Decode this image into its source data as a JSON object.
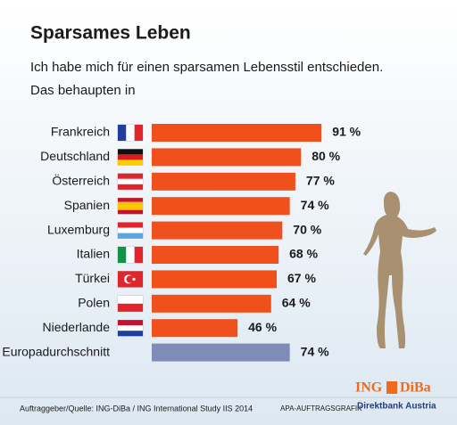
{
  "chart_data": {
    "type": "bar",
    "title": "Sparsames Leben",
    "subtitle": [
      "Ich habe mich für einen sparsamen Lebensstil entschieden.",
      "Das behaupten in"
    ],
    "categories": [
      "Frankreich",
      "Deutschland",
      "Österreich",
      "Spanien",
      "Luxemburg",
      "Italien",
      "Türkei",
      "Polen",
      "Niederlande",
      "Europadurchschnitt"
    ],
    "values": [
      91,
      80,
      77,
      74,
      70,
      68,
      67,
      64,
      46,
      74
    ],
    "value_labels": [
      "91 %",
      "80 %",
      "77 %",
      "74 %",
      "70 %",
      "68 %",
      "67 %",
      "64 %",
      "46 %",
      "74 %"
    ],
    "colors": [
      "#f0501c",
      "#f0501c",
      "#f0501c",
      "#f0501c",
      "#f0501c",
      "#f0501c",
      "#f0501c",
      "#f0501c",
      "#f0501c",
      "#7f8cb8"
    ],
    "source": "Auftraggeber/Quelle: ING-DiBa / ING International Study IIS 2014",
    "credit": "APA-AUFTRAGSGRAFIK",
    "logo": {
      "brand": [
        "ING",
        "DiBa"
      ],
      "tagline": "Direktbank Austria"
    }
  }
}
